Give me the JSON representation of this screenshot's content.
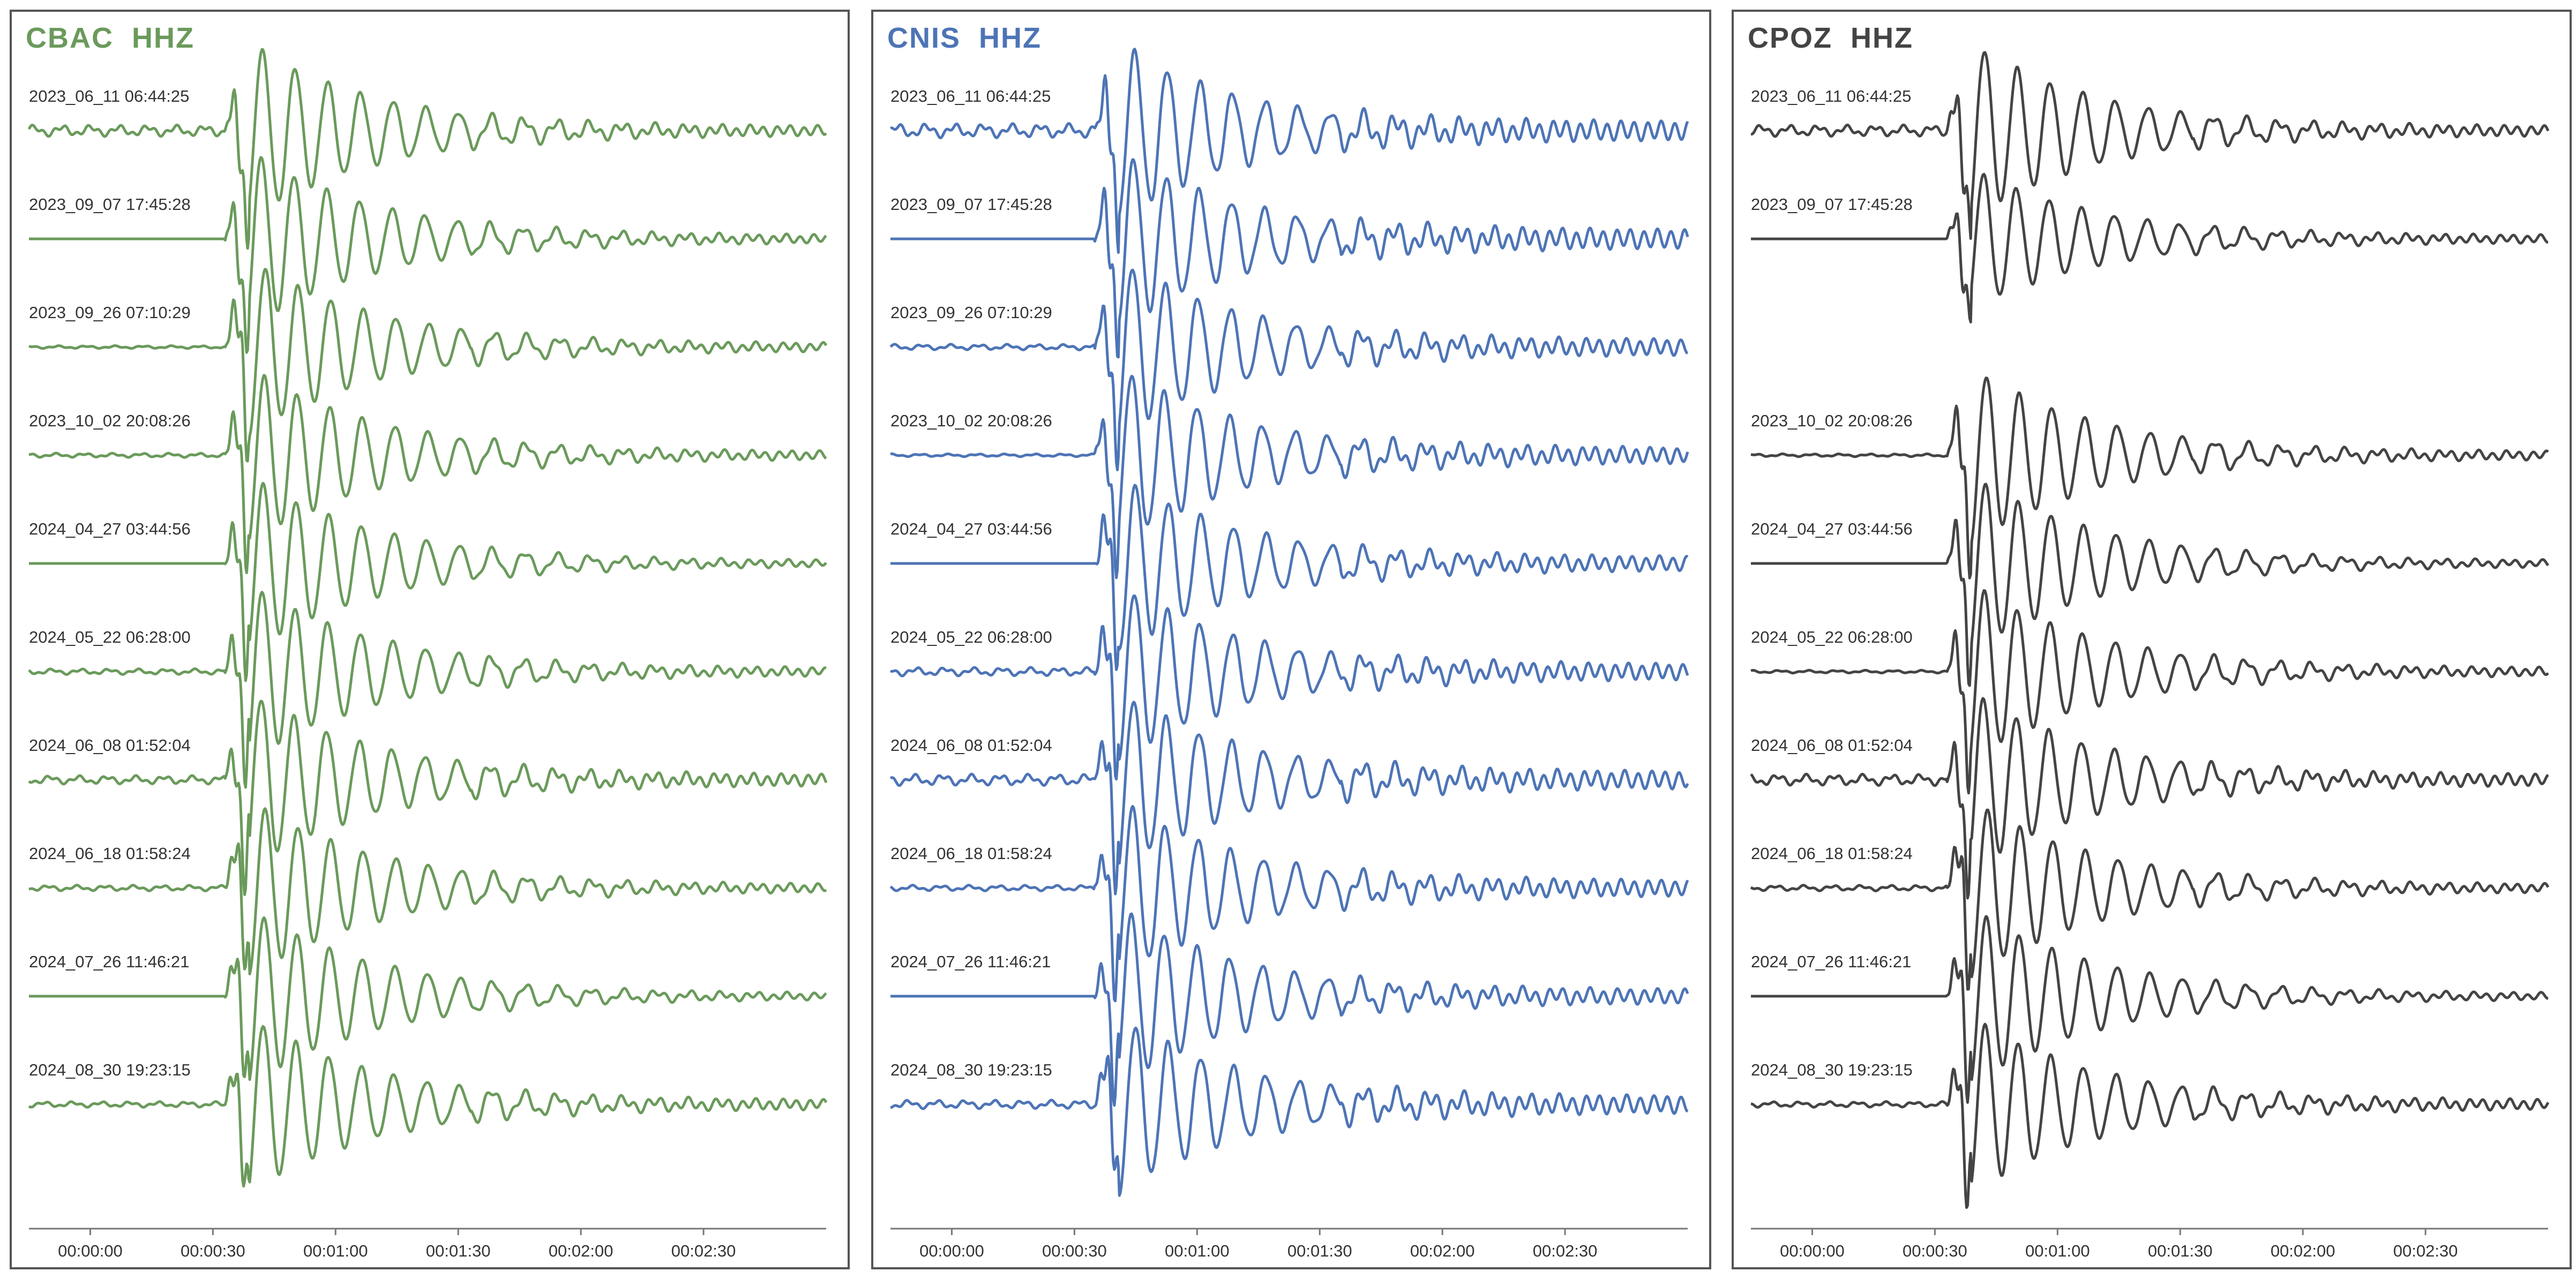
{
  "panels": [
    {
      "title": "CBAC  HHZ",
      "color": "#6a9a5b",
      "traces": [
        {
          "label": "2023_06_11 06:44:25",
          "amp": 1.0,
          "pre_noise": 0.04,
          "noise": 0.03,
          "onset_s": 33
        },
        {
          "label": "2023_09_07 17:45:28",
          "amp": 1.0,
          "pre_noise": 0.0,
          "noise": 0.025,
          "onset_s": 33
        },
        {
          "label": "2023_09_26 07:10:29",
          "amp": 1.0,
          "pre_noise": 0.01,
          "noise": 0.025,
          "onset_s": 33
        },
        {
          "label": "2023_10_02 20:08:26",
          "amp": 1.0,
          "pre_noise": 0.015,
          "noise": 0.025,
          "onset_s": 33
        },
        {
          "label": "2024_04_27 03:44:56",
          "amp": 1.0,
          "pre_noise": 0.0,
          "noise": 0.02,
          "onset_s": 33
        },
        {
          "label": "2024_05_22 06:28:00",
          "amp": 1.0,
          "pre_noise": 0.02,
          "noise": 0.025,
          "onset_s": 33
        },
        {
          "label": "2024_06_08 01:52:04",
          "amp": 1.0,
          "pre_noise": 0.03,
          "noise": 0.035,
          "onset_s": 33
        },
        {
          "label": "2024_06_18 01:58:24",
          "amp": 1.0,
          "pre_noise": 0.02,
          "noise": 0.025,
          "onset_s": 33
        },
        {
          "label": "2024_07_26 11:46:21",
          "amp": 1.0,
          "pre_noise": 0.0,
          "noise": 0.02,
          "onset_s": 33
        },
        {
          "label": "2024_08_30 19:23:15",
          "amp": 1.0,
          "pre_noise": 0.02,
          "noise": 0.03,
          "onset_s": 33
        }
      ]
    },
    {
      "title": "CNIS  HHZ",
      "color": "#4d74b6",
      "traces": [
        {
          "label": "2023_06_11 06:44:25",
          "amp": 1.0,
          "pre_noise": 0.05,
          "noise": 0.06,
          "onset_s": 35
        },
        {
          "label": "2023_09_07 17:45:28",
          "amp": 1.0,
          "pre_noise": 0.0,
          "noise": 0.06,
          "onset_s": 35
        },
        {
          "label": "2023_09_26 07:10:29",
          "amp": 1.0,
          "pre_noise": 0.02,
          "noise": 0.05,
          "onset_s": 35
        },
        {
          "label": "2023_10_02 20:08:26",
          "amp": 1.0,
          "pre_noise": 0.01,
          "noise": 0.05,
          "onset_s": 35
        },
        {
          "label": "2024_04_27 03:44:56",
          "amp": 1.0,
          "pre_noise": 0.0,
          "noise": 0.045,
          "onset_s": 35
        },
        {
          "label": "2024_05_22 06:28:00",
          "amp": 1.0,
          "pre_noise": 0.03,
          "noise": 0.05,
          "onset_s": 35
        },
        {
          "label": "2024_06_08 01:52:04",
          "amp": 1.0,
          "pre_noise": 0.04,
          "noise": 0.055,
          "onset_s": 35
        },
        {
          "label": "2024_06_18 01:58:24",
          "amp": 1.0,
          "pre_noise": 0.02,
          "noise": 0.05,
          "onset_s": 35
        },
        {
          "label": "2024_07_26 11:46:21",
          "amp": 1.0,
          "pre_noise": 0.0,
          "noise": 0.045,
          "onset_s": 35
        },
        {
          "label": "2024_08_30 19:23:15",
          "amp": 1.0,
          "pre_noise": 0.03,
          "noise": 0.055,
          "onset_s": 35
        }
      ]
    },
    {
      "title": "CPOZ  HHZ",
      "color": "#444444",
      "traces": [
        {
          "label": "2023_06_11 06:44:25",
          "amp": 1.0,
          "pre_noise": 0.04,
          "noise": 0.03,
          "onset_s": 33,
          "slot": 0
        },
        {
          "label": "2023_09_07 17:45:28",
          "amp": 0.8,
          "pre_noise": 0.0,
          "noise": 0.03,
          "onset_s": 33,
          "slot": 1
        },
        {
          "label": "2023_10_02 20:08:26",
          "amp": 1.0,
          "pre_noise": 0.01,
          "noise": 0.025,
          "onset_s": 33,
          "slot": 3
        },
        {
          "label": "2024_04_27 03:44:56",
          "amp": 1.0,
          "pre_noise": 0.0,
          "noise": 0.02,
          "onset_s": 33,
          "slot": 4
        },
        {
          "label": "2024_05_22 06:28:00",
          "amp": 1.0,
          "pre_noise": 0.01,
          "noise": 0.025,
          "onset_s": 33,
          "slot": 5
        },
        {
          "label": "2024_06_08 01:52:04",
          "amp": 1.0,
          "pre_noise": 0.04,
          "noise": 0.035,
          "onset_s": 33,
          "slot": 6
        },
        {
          "label": "2024_06_18 01:58:24",
          "amp": 1.0,
          "pre_noise": 0.02,
          "noise": 0.025,
          "onset_s": 33,
          "slot": 7
        },
        {
          "label": "2024_07_26 11:46:21",
          "amp": 1.0,
          "pre_noise": 0.0,
          "noise": 0.02,
          "onset_s": 33,
          "slot": 8
        },
        {
          "label": "2024_08_30 19:23:15",
          "amp": 1.0,
          "pre_noise": 0.02,
          "noise": 0.03,
          "onset_s": 33,
          "slot": 9
        }
      ]
    }
  ],
  "x_axis": {
    "range_s": [
      -15,
      180
    ],
    "ticks": [
      "00:00:00",
      "00:00:30",
      "00:01:00",
      "00:01:30",
      "00:02:00",
      "00:02:30"
    ],
    "tick_values_s": [
      0,
      30,
      60,
      90,
      120,
      150
    ]
  },
  "chart_data": {
    "type": "line",
    "title": "",
    "xlabel": "",
    "ylabel": "",
    "x_ticks": [
      "00:00:00",
      "00:00:30",
      "00:01:00",
      "00:01:30",
      "00:02:00",
      "00:02:30"
    ],
    "xlim_s": [
      -15,
      180
    ],
    "grid": false,
    "panels": [
      {
        "title": "CBAC  HHZ",
        "series": [
          "2023_06_11 06:44:25",
          "2023_09_07 17:45:28",
          "2023_09_26 07:10:29",
          "2023_10_02 20:08:26",
          "2024_04_27 03:44:56",
          "2024_05_22 06:28:00",
          "2024_06_08 01:52:04",
          "2024_06_18 01:58:24",
          "2024_07_26 11:46:21",
          "2024_08_30 19:23:15"
        ],
        "p_onset_s": 33
      },
      {
        "title": "CNIS  HHZ",
        "series": [
          "2023_06_11 06:44:25",
          "2023_09_07 17:45:28",
          "2023_09_26 07:10:29",
          "2023_10_02 20:08:26",
          "2024_04_27 03:44:56",
          "2024_05_22 06:28:00",
          "2024_06_08 01:52:04",
          "2024_06_18 01:58:24",
          "2024_07_26 11:46:21",
          "2024_08_30 19:23:15"
        ],
        "p_onset_s": 35
      },
      {
        "title": "CPOZ  HHZ",
        "series": [
          "2023_06_11 06:44:25",
          "2023_09_07 17:45:28",
          "2023_10_02 20:08:26",
          "2024_04_27 03:44:56",
          "2024_05_22 06:28:00",
          "2024_06_08 01:52:04",
          "2024_06_18 01:58:24",
          "2024_07_26 11:46:21",
          "2024_08_30 19:23:15"
        ],
        "p_onset_s": 33
      }
    ]
  }
}
